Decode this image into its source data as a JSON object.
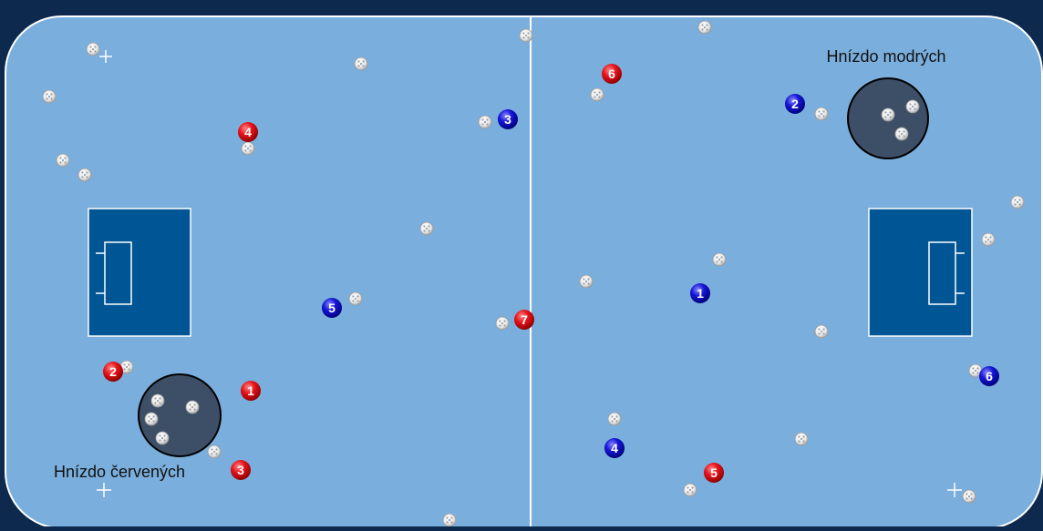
{
  "rink": {
    "surface_color": "#7aaedc",
    "frame_color": "#0d2a4e",
    "goal_area_color": "#005695",
    "line_color": "#ffffff"
  },
  "nests": {
    "blue": {
      "label": "Hnízdo modrých",
      "fill": "#3c4f66"
    },
    "red": {
      "label": "Hnízdo červených",
      "fill": "#3c4f66"
    }
  },
  "team_colors": {
    "red": "#e8131b",
    "blue": "#1616d6"
  },
  "players": {
    "red": [
      "1",
      "2",
      "3",
      "4",
      "5",
      "6",
      "7"
    ],
    "blue": [
      "1",
      "2",
      "3",
      "4",
      "5",
      "6"
    ]
  },
  "ball_color": "#f0f0f0"
}
